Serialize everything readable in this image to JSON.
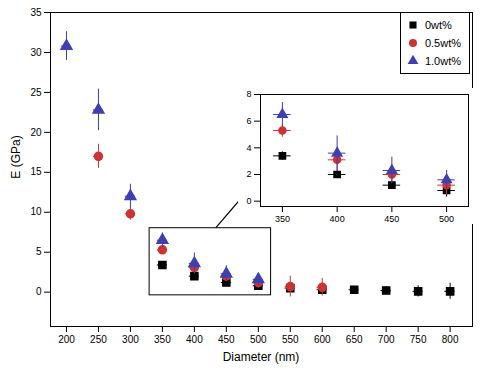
{
  "chart_data": [
    {
      "type": "scatter",
      "x_label": "Diameter (nm)",
      "y_label": "E (GPa)",
      "xlim": [
        175,
        835
      ],
      "ylim": [
        -4.3,
        35
      ],
      "xticks": [
        200,
        250,
        300,
        350,
        400,
        450,
        500,
        550,
        600,
        650,
        700,
        750,
        800
      ],
      "yticks": [
        0,
        5,
        10,
        15,
        20,
        25,
        30,
        35
      ],
      "legend": "top-right",
      "series": [
        {
          "name": "0wt%",
          "color": "#000000",
          "marker": "square",
          "x": [
            350,
            400,
            450,
            500,
            550,
            600,
            650,
            700,
            750,
            800
          ],
          "values": [
            3.4,
            2.0,
            1.2,
            0.8,
            0.5,
            0.3,
            0.3,
            0.2,
            0.1,
            0.1
          ],
          "errors": [
            0.3,
            0.3,
            0.3,
            0.5,
            0.5,
            0.5,
            0.4,
            0.5,
            0.7,
            1.0
          ],
          "x_errors": [
            8,
            8,
            8,
            8,
            8,
            8,
            8,
            8,
            8,
            8
          ]
        },
        {
          "name": "0.5wt%",
          "color": "#cc3333",
          "marker": "circle",
          "x": [
            250,
            300,
            350,
            400,
            450,
            500,
            550,
            600
          ],
          "values": [
            17,
            9.8,
            5.3,
            3.1,
            2.0,
            1.2,
            0.7,
            0.6
          ],
          "errors": [
            1.5,
            0.8,
            0.5,
            0.8,
            0.5,
            0.7,
            1.3,
            1.1
          ],
          "x_errors": [
            8,
            8,
            8,
            8,
            8,
            8,
            8,
            8
          ]
        },
        {
          "name": "1.0wt%",
          "color": "#3f3fb0",
          "marker": "triangle",
          "x": [
            200,
            250,
            300,
            350,
            400,
            450,
            500
          ],
          "values": [
            30.8,
            22.8,
            12,
            6.5,
            3.6,
            2.3,
            1.6
          ],
          "errors": [
            1.8,
            2.6,
            1.5,
            0.9,
            1.3,
            1.0,
            0.7
          ],
          "x_errors": [
            8,
            8,
            8,
            8,
            8,
            8,
            8
          ]
        }
      ]
    },
    {
      "type": "scatter",
      "xlim": [
        330,
        520
      ],
      "ylim": [
        -0.4,
        8
      ],
      "xticks": [
        350,
        400,
        450,
        500
      ],
      "yticks": [
        0,
        2,
        4,
        6,
        8
      ],
      "series": [
        {
          "name": "0wt%",
          "color": "#000000",
          "marker": "square",
          "x": [
            350,
            400,
            450,
            500
          ],
          "values": [
            3.4,
            2.0,
            1.2,
            0.8
          ],
          "errors": [
            0.3,
            0.3,
            0.3,
            0.5
          ],
          "x_errors": [
            8,
            8,
            8,
            8
          ]
        },
        {
          "name": "0.5wt%",
          "color": "#cc3333",
          "marker": "circle",
          "x": [
            350,
            400,
            450,
            500
          ],
          "values": [
            5.3,
            3.1,
            2.0,
            1.2
          ],
          "errors": [
            0.5,
            0.8,
            0.5,
            0.7
          ],
          "x_errors": [
            8,
            8,
            8,
            8
          ]
        },
        {
          "name": "1.0wt%",
          "color": "#3f3fb0",
          "marker": "triangle",
          "x": [
            350,
            400,
            450,
            500
          ],
          "values": [
            6.5,
            3.6,
            2.3,
            1.6
          ],
          "errors": [
            0.9,
            1.3,
            1.0,
            0.7
          ],
          "x_errors": [
            8,
            8,
            8,
            8
          ]
        }
      ]
    }
  ]
}
